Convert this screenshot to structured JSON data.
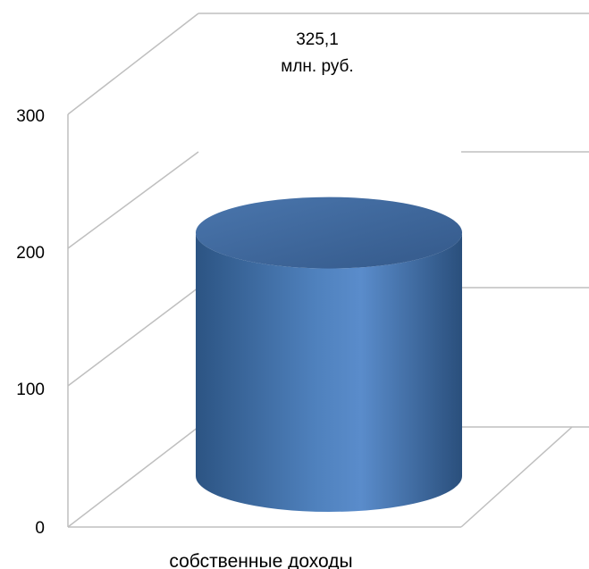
{
  "chart_data": {
    "type": "bar",
    "style": "3d-cylinder",
    "categories": [
      "собственные доходы"
    ],
    "values": [
      325.1
    ],
    "data_labels": [
      "325,1",
      "млн. руб."
    ],
    "y_ticks": [
      "0",
      "100",
      "200",
      "300"
    ],
    "ylim": [
      0,
      300
    ],
    "grid": true,
    "legend": "none",
    "colors": {
      "bar": "#4f81bd",
      "bar_dark": "#2c5483",
      "bar_top": "#3f6a9e",
      "grid": "#bfbfbf"
    }
  }
}
